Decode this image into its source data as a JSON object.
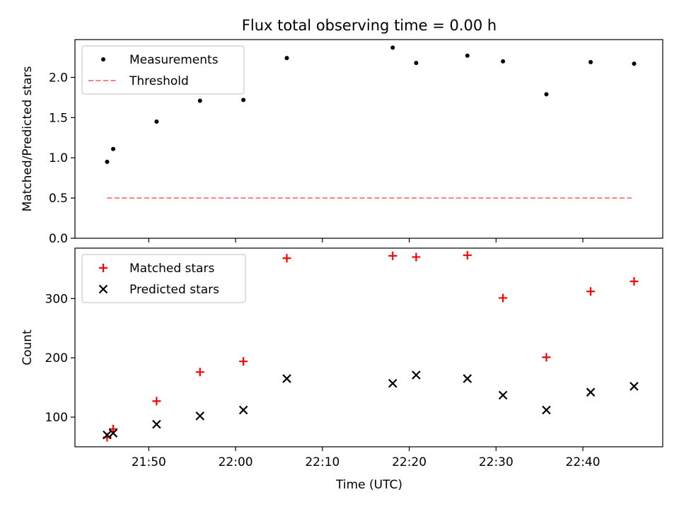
{
  "title": "Flux total observing time = 0.00 h",
  "xlabel": "Time (UTC)",
  "x_tick_labels": [
    "21:50",
    "22:00",
    "22:10",
    "22:20",
    "22:30",
    "22:40"
  ],
  "chart_data": [
    {
      "type": "scatter",
      "panel": "top",
      "ylabel": "Matched/Predicted stars",
      "xlim": [
        "21:41.5",
        "22:49.2"
      ],
      "ylim": [
        0,
        2.47
      ],
      "y_ticks": [
        0.0,
        0.5,
        1.0,
        1.5,
        2.0
      ],
      "y_tick_labels": [
        "0.0",
        "0.5",
        "1.0",
        "1.5",
        "2.0"
      ],
      "legend_position": "top-left",
      "series": [
        {
          "name": "Measurements",
          "marker": "dot",
          "color": "#000000",
          "x": [
            "21:45.2",
            "21:45.9",
            "21:50.9",
            "21:55.9",
            "22:00.9",
            "22:05.9",
            "22:18.1",
            "22:20.8",
            "22:26.7",
            "22:30.8",
            "22:35.8",
            "22:40.9",
            "22:45.9"
          ],
          "y": [
            0.95,
            1.11,
            1.45,
            1.71,
            1.72,
            2.24,
            2.37,
            2.18,
            2.27,
            2.2,
            1.79,
            2.19,
            2.17
          ]
        },
        {
          "name": "Threshold",
          "style": "dashed",
          "color": "#ff7f7f",
          "x": [
            "21:45.2",
            "22:45.9"
          ],
          "y": [
            0.5,
            0.5
          ]
        }
      ]
    },
    {
      "type": "scatter",
      "panel": "bottom",
      "ylabel": "Count",
      "xlim": [
        "21:41.5",
        "22:49.2"
      ],
      "ylim": [
        50,
        385
      ],
      "y_ticks": [
        100,
        200,
        300
      ],
      "y_tick_labels": [
        "100",
        "200",
        "300"
      ],
      "legend_position": "top-left",
      "series": [
        {
          "name": "Matched stars",
          "marker": "plus",
          "color": "#ff0000",
          "x": [
            "21:45.2",
            "21:45.9",
            "21:50.9",
            "21:55.9",
            "22:00.9",
            "22:05.9",
            "22:18.1",
            "22:20.8",
            "22:26.7",
            "22:30.8",
            "22:35.8",
            "22:40.9",
            "22:45.9"
          ],
          "y": [
            66,
            80,
            127,
            176,
            194,
            368,
            372,
            370,
            373,
            301,
            201,
            312,
            329
          ]
        },
        {
          "name": "Predicted stars",
          "marker": "x",
          "color": "#000000",
          "x": [
            "21:45.2",
            "21:45.9",
            "21:50.9",
            "21:55.9",
            "22:00.9",
            "22:05.9",
            "22:18.1",
            "22:20.8",
            "22:26.7",
            "22:30.8",
            "22:35.8",
            "22:40.9",
            "22:45.9"
          ],
          "y": [
            70,
            73,
            88,
            102,
            112,
            165,
            157,
            171,
            165,
            137,
            112,
            142,
            152
          ]
        }
      ]
    }
  ]
}
